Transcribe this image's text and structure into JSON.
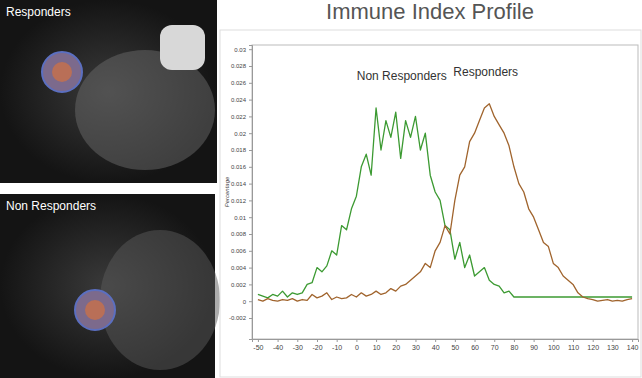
{
  "chart_data": {
    "type": "line",
    "title": "Immune Index Profile",
    "y_label": "Percentage",
    "x": [
      -50,
      -47.5,
      -45,
      -42.5,
      -40,
      -37.5,
      -35,
      -32.5,
      -30,
      -27.5,
      -25,
      -22.5,
      -20,
      -17.5,
      -15,
      -12.5,
      -10,
      -7.5,
      -5,
      -2.5,
      0,
      2.5,
      5,
      7.5,
      10,
      12.5,
      15,
      17.5,
      20,
      22.5,
      25,
      27.5,
      30,
      32.5,
      35,
      37.5,
      40,
      42.5,
      45,
      47.5,
      50,
      52.5,
      55,
      57.5,
      60,
      62.5,
      65,
      67.5,
      70,
      72.5,
      75,
      77.5,
      80,
      82.5,
      85,
      87.5,
      90,
      92.5,
      95,
      97.5,
      100,
      102.5,
      105,
      107.5,
      110,
      112.5,
      115,
      117.5,
      120,
      122.5,
      125,
      127.5,
      130,
      132.5,
      135,
      137.5,
      140
    ],
    "series": [
      {
        "name": "Non Responders",
        "color": "#3c9a32",
        "values": [
          0.0008,
          0.0006,
          0.0004,
          0.0008,
          0.0006,
          0.0012,
          0.0005,
          0.001,
          0.0008,
          0.001,
          0.002,
          0.0022,
          0.004,
          0.0035,
          0.0042,
          0.006,
          0.0055,
          0.009,
          0.0085,
          0.011,
          0.0125,
          0.016,
          0.0175,
          0.015,
          0.023,
          0.018,
          0.0215,
          0.0195,
          0.0225,
          0.017,
          0.0215,
          0.0195,
          0.022,
          0.018,
          0.02,
          0.015,
          0.013,
          0.012,
          0.009,
          0.0085,
          0.005,
          0.007,
          0.004,
          0.0055,
          0.003,
          0.0035,
          0.004,
          0.0025,
          0.002,
          0.0018,
          0.001,
          0.0012,
          0.0005,
          0.0005,
          0.0005,
          0.0005,
          0.0005,
          0.0005,
          0.0005,
          0.0005,
          0.0005,
          0.0005,
          0.0005,
          0.0005,
          0.0005,
          0.0005,
          0.0005,
          0.0005,
          0.0005,
          0.0005,
          0.0005,
          0.0005,
          0.0005,
          0.0005,
          0.0005,
          0.0005,
          0.0005
        ]
      },
      {
        "name": "Responders",
        "color": "#a0642d",
        "values": [
          0.0002,
          0,
          0.0003,
          0.0001,
          0,
          0.0002,
          0.0001,
          0.0003,
          0,
          0.0002,
          0.0001,
          0.0008,
          0.0004,
          0.0006,
          0.001,
          0.0002,
          0.0005,
          0.0003,
          0.0004,
          0.0008,
          0.0005,
          0.001,
          0.0006,
          0.0008,
          0.0012,
          0.0008,
          0.001,
          0.0015,
          0.0012,
          0.0018,
          0.002,
          0.0025,
          0.003,
          0.0035,
          0.0045,
          0.004,
          0.006,
          0.007,
          0.009,
          0.008,
          0.012,
          0.015,
          0.016,
          0.019,
          0.02,
          0.0215,
          0.023,
          0.0235,
          0.022,
          0.021,
          0.02,
          0.0185,
          0.016,
          0.014,
          0.013,
          0.011,
          0.01,
          0.0085,
          0.007,
          0.0065,
          0.0045,
          0.004,
          0.003,
          0.0025,
          0.002,
          0.001,
          0.0005,
          0.0003,
          0.0002,
          0,
          0.0001,
          0.0002,
          0,
          0.0001,
          0,
          0.0002,
          0.0003
        ]
      }
    ],
    "xlim": [
      -53,
      143
    ],
    "xticks": [
      -50,
      -40,
      -30,
      -20,
      -10,
      0,
      10,
      20,
      30,
      40,
      50,
      60,
      70,
      80,
      90,
      100,
      110,
      120,
      130,
      140
    ],
    "ylim": [
      -0.0045,
      0.0305
    ],
    "yticks": [
      -0.002,
      0,
      0.002,
      0.004,
      0.006,
      0.008,
      0.01,
      0.012,
      0.014,
      0.016,
      0.018,
      0.02,
      0.022,
      0.024,
      0.026,
      0.028,
      0.03
    ],
    "grid": false
  },
  "image_panels": [
    {
      "label": "Responders"
    },
    {
      "label": "Non Responders"
    }
  ]
}
